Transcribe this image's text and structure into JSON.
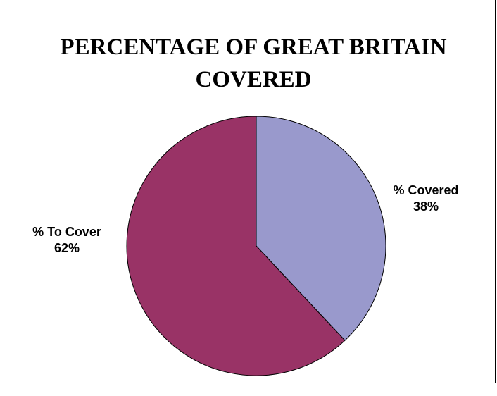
{
  "chart_data": {
    "type": "pie",
    "title": "PERCENTAGE OF GREAT BRITAIN COVERED",
    "slices": [
      {
        "name": "% Covered",
        "value": 38,
        "value_label": "38%",
        "color": "#9999CC"
      },
      {
        "name": "% To Cover",
        "value": 62,
        "value_label": "62%",
        "color": "#993366"
      }
    ],
    "start_angle": "12 o'clock",
    "direction": "clockwise"
  }
}
